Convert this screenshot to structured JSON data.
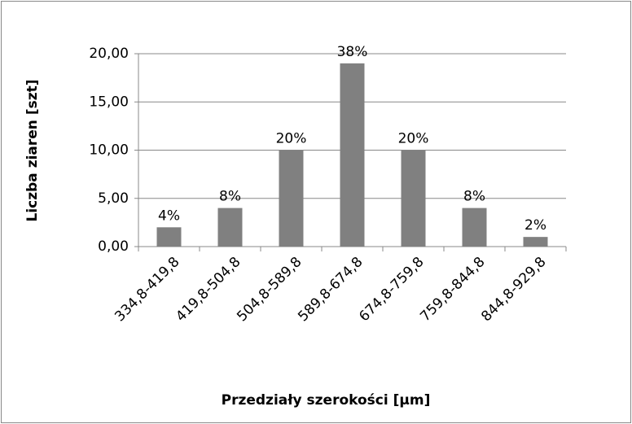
{
  "chart_data": {
    "type": "bar",
    "x_label": "Przedziały szerokości  [µm]",
    "y_label": "Liczba ziaren  [szt]",
    "categories": [
      "334,8-419,8",
      "419,8-504,8",
      "504,8-589,8",
      "589,8-674,8",
      "674,8-759,8",
      "759,8-844,8",
      "844,8-929,8"
    ],
    "values": [
      2,
      4,
      10,
      19,
      10,
      4,
      1
    ],
    "annotations": [
      "4%",
      "8%",
      "20%",
      "38%",
      "20%",
      "8%",
      "2%"
    ],
    "color": "#808080",
    "ylim": [
      0,
      20
    ],
    "yticks": [
      {
        "value": 0,
        "label": "0,00"
      },
      {
        "value": 5,
        "label": "5,00"
      },
      {
        "value": 10,
        "label": "10,00"
      },
      {
        "value": 15,
        "label": "15,00"
      },
      {
        "value": 20,
        "label": "20,00"
      }
    ],
    "grid": true
  }
}
